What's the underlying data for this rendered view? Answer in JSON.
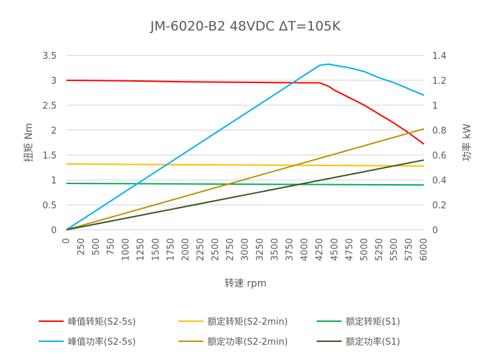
{
  "chart_data": {
    "type": "line",
    "title": "JM-6020-B2 48VDC ΔT=105K",
    "xlabel": "转速 rpm",
    "ylabel": "扭矩 Nm",
    "y2label": "功率 kW",
    "xlim": [
      0,
      6000
    ],
    "ylim": [
      0,
      3.5
    ],
    "y2lim": [
      0,
      1.4
    ],
    "grid": true,
    "legend_position": "bottom",
    "x_ticks": [
      "0",
      "250",
      "500",
      "750",
      "1000",
      "1250",
      "1500",
      "1750",
      "2000",
      "2250",
      "2500",
      "2750",
      "3000",
      "3250",
      "3500",
      "3750",
      "4000",
      "4250",
      "4500",
      "4750",
      "5000",
      "5250",
      "5500",
      "5750",
      "6000"
    ],
    "y_ticks": [
      "0",
      "0.5",
      "1",
      "1.5",
      "2",
      "2.5",
      "3",
      "3.5"
    ],
    "y2_ticks": [
      "0",
      "0.2",
      "0.4",
      "0.6",
      "0.8",
      "1",
      "1.2",
      "1.4"
    ],
    "series": [
      {
        "name": "峰值转矩(S2-5s)",
        "axis": "left",
        "color": "#ff0000",
        "x": [
          0,
          1000,
          2000,
          3000,
          4000,
          4250,
          4400,
          4500,
          4600,
          4750,
          5000,
          5250,
          5500,
          5750,
          6000
        ],
        "y": [
          3.0,
          2.99,
          2.97,
          2.96,
          2.95,
          2.95,
          2.88,
          2.8,
          2.74,
          2.65,
          2.5,
          2.32,
          2.14,
          1.94,
          1.72
        ]
      },
      {
        "name": "额定转矩(S2-2min)",
        "axis": "left",
        "color": "#ffc000",
        "x": [
          0,
          6000
        ],
        "y": [
          1.32,
          1.28
        ]
      },
      {
        "name": "额定转矩(S1)",
        "axis": "left",
        "color": "#00b050",
        "x": [
          0,
          6000
        ],
        "y": [
          0.93,
          0.9
        ]
      },
      {
        "name": "峰值功率(S2-5s)",
        "axis": "right",
        "color": "#00b0f0",
        "x": [
          0,
          4250,
          4400,
          4500,
          4750,
          5000,
          5250,
          5500,
          5750,
          6000
        ],
        "y": [
          0,
          1.32,
          1.33,
          1.32,
          1.3,
          1.27,
          1.22,
          1.18,
          1.13,
          1.08
        ]
      },
      {
        "name": "额定功率(S2-2min)",
        "axis": "right",
        "color": "#bf9000",
        "x": [
          0,
          6000
        ],
        "y": [
          0,
          0.81
        ]
      },
      {
        "name": "额定功率(S1)",
        "axis": "right",
        "color": "#375623",
        "x": [
          0,
          6000
        ],
        "y": [
          0,
          0.56
        ]
      }
    ]
  }
}
